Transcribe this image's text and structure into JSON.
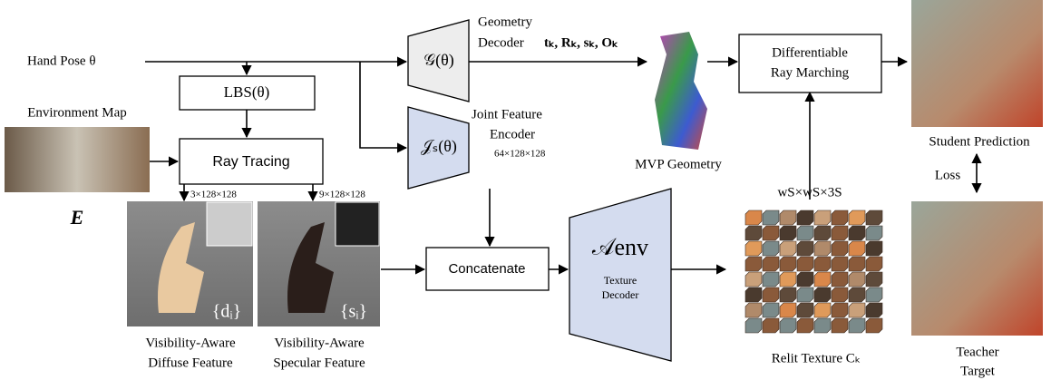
{
  "hand_pose": "Hand Pose θ",
  "lbs": "LBS(θ)",
  "environment_map": "Environment Map",
  "ray_tracing": "Ray Tracing",
  "env_symbol": "E",
  "diffuse_dims": "3×128×128",
  "specular_dims": "9×128×128",
  "diffuse_symbol": "{dᵢ}",
  "specular_symbol": "{sᵢ}",
  "diffuse_caption": [
    "Visibility-Aware",
    "Diffuse Feature"
  ],
  "specular_caption": [
    "Visibility-Aware",
    "Specular Feature"
  ],
  "geometry_symbol": "𝒢(θ)",
  "joint_symbol": "𝒥ₛ(θ)",
  "geometry_decoder": [
    "Geometry",
    "Decoder"
  ],
  "geometry_params": "tₖ, Rₖ, sₖ, Oₖ",
  "joint_encoder": [
    "Joint Feature",
    "Encoder"
  ],
  "joint_dims": "64×128×128",
  "concatenate": "Concatenate",
  "texture_symbol": "𝒜env",
  "texture_decoder": [
    "Texture",
    "Decoder"
  ],
  "mvp_geometry": "MVP Geometry",
  "ray_marching": [
    "Differentiable",
    "Ray Marching"
  ],
  "texture_dims": "wS×wS×3S",
  "relit_texture": "Relit Texture Cₖ",
  "student": "Student Prediction",
  "loss": "Loss",
  "teacher": [
    "Teacher",
    "Target"
  ]
}
